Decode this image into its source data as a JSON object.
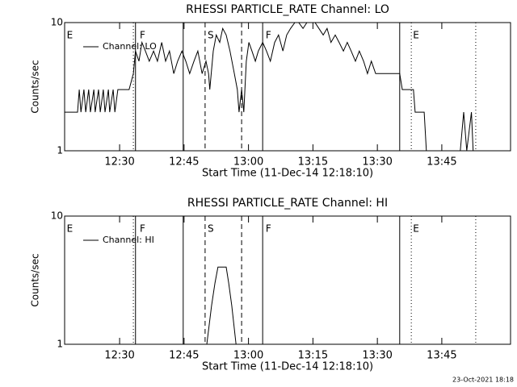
{
  "chart_data": [
    {
      "type": "line",
      "title": "RHESSI PARTICLE_RATE Channel: LO",
      "x_label": "Start Time (11-Dec-14 12:18:10)",
      "y_label": "Counts/sec",
      "log_y": true,
      "xlim": [
        737.2,
        841.0
      ],
      "ylim": [
        1,
        10
      ],
      "yticks": [
        1,
        10
      ],
      "xticks": [
        {
          "value": 750,
          "label": "12:30"
        },
        {
          "value": 765,
          "label": "12:45"
        },
        {
          "value": 780,
          "label": "13:00"
        },
        {
          "value": 795,
          "label": "13:15"
        },
        {
          "value": 810,
          "label": "13:30"
        },
        {
          "value": 825,
          "label": "13:45"
        }
      ],
      "x": [
        737.2,
        740.2,
        740.6,
        741.0,
        741.7,
        742.1,
        742.8,
        743.2,
        744.0,
        744.3,
        745.1,
        745.5,
        746.2,
        746.6,
        747.4,
        747.7,
        748.5,
        748.9,
        749.6,
        750.4,
        752.2,
        753.2,
        753.7,
        754.5,
        755.2,
        756.0,
        756.9,
        757.9,
        758.8,
        759.8,
        760.7,
        761.6,
        762.6,
        763.5,
        764.5,
        765.4,
        766.3,
        767.3,
        768.2,
        769.2,
        770.1,
        770.7,
        771.0,
        771.8,
        772.5,
        773.3,
        774.0,
        774.8,
        775.7,
        776.7,
        777.4,
        777.8,
        778.4,
        778.9,
        779.5,
        780.1,
        780.8,
        781.6,
        782.3,
        783.3,
        784.2,
        785.1,
        786.1,
        787.0,
        788.0,
        788.9,
        789.8,
        790.8,
        791.7,
        792.7,
        793.6,
        794.5,
        795.5,
        796.4,
        797.4,
        798.3,
        799.2,
        800.2,
        801.1,
        802.1,
        803.0,
        803.9,
        804.9,
        805.8,
        806.8,
        807.7,
        808.6,
        809.6,
        810.5,
        812.4,
        814.3,
        815.2,
        815.8,
        817.1,
        818.4,
        818.8,
        819.9,
        820.9,
        821.4,
        823.7,
        826.5,
        829.3,
        830.1,
        830.8,
        831.9,
        832.3
      ],
      "series": [
        {
          "name": "Channel: LO",
          "color": "#000000",
          "values": [
            2,
            2,
            3,
            2,
            3,
            2,
            3,
            2,
            3,
            2,
            3,
            2,
            3,
            2,
            3,
            2,
            3,
            2,
            3,
            3,
            3,
            4,
            6,
            5,
            7,
            6,
            5,
            6,
            5,
            7,
            5,
            6,
            4,
            5,
            6,
            5,
            4,
            5,
            6,
            4,
            5,
            4,
            3,
            6,
            8,
            7,
            9,
            8,
            6,
            4,
            3,
            2,
            3,
            2,
            5,
            7,
            6,
            5,
            6,
            7,
            6,
            5,
            7,
            8,
            6,
            8,
            9,
            10,
            10,
            9,
            10,
            10,
            10,
            9,
            8,
            9,
            7,
            8,
            7,
            6,
            7,
            6,
            5,
            6,
            5,
            4,
            5,
            4,
            4,
            4,
            4,
            4,
            3,
            3,
            3,
            2,
            2,
            2,
            1,
            1,
            1,
            1,
            2,
            1,
            2,
            1
          ]
        }
      ],
      "vlines": [
        {
          "x": 753.2,
          "style": "dotted"
        },
        {
          "x": 753.7,
          "style": "solid"
        },
        {
          "x": 764.8,
          "style": "solid"
        },
        {
          "x": 769.9,
          "style": "dashed"
        },
        {
          "x": 778.4,
          "style": "dashed"
        },
        {
          "x": 783.3,
          "style": "solid"
        },
        {
          "x": 815.2,
          "style": "solid"
        },
        {
          "x": 817.9,
          "style": "dotted"
        },
        {
          "x": 832.9,
          "style": "dotted"
        }
      ],
      "flags": [
        {
          "x": 737.5,
          "text": "E"
        },
        {
          "x": 754.5,
          "text": "F"
        },
        {
          "x": 770.3,
          "text": "S"
        },
        {
          "x": 783.8,
          "text": "F"
        },
        {
          "x": 818.1,
          "text": "E"
        }
      ]
    },
    {
      "type": "line",
      "title": "RHESSI PARTICLE_RATE Channel: HI",
      "x_label": "Start Time (11-Dec-14 12:18:10)",
      "y_label": "Counts/sec",
      "log_y": true,
      "xlim": [
        737.2,
        841.0
      ],
      "ylim": [
        1,
        10
      ],
      "yticks": [
        1,
        10
      ],
      "xticks": [
        {
          "value": 750,
          "label": "12:30"
        },
        {
          "value": 765,
          "label": "12:45"
        },
        {
          "value": 780,
          "label": "13:00"
        },
        {
          "value": 795,
          "label": "13:15"
        },
        {
          "value": 810,
          "label": "13:30"
        },
        {
          "value": 825,
          "label": "13:45"
        }
      ],
      "x": [
        737.2,
        770.3,
        771.4,
        772.2,
        772.9,
        774.8,
        775.4,
        776.1,
        777.1,
        832.3
      ],
      "series": [
        {
          "name": "Channel: HI",
          "color": "#000000",
          "values": [
            1,
            1,
            2,
            3,
            4,
            4,
            3,
            2,
            1,
            1
          ]
        }
      ],
      "vlines": [
        {
          "x": 753.2,
          "style": "dotted"
        },
        {
          "x": 753.7,
          "style": "solid"
        },
        {
          "x": 764.8,
          "style": "solid"
        },
        {
          "x": 769.9,
          "style": "dashed"
        },
        {
          "x": 778.4,
          "style": "dashed"
        },
        {
          "x": 783.3,
          "style": "solid"
        },
        {
          "x": 815.2,
          "style": "solid"
        },
        {
          "x": 817.9,
          "style": "dotted"
        },
        {
          "x": 832.9,
          "style": "dotted"
        }
      ],
      "flags": [
        {
          "x": 737.5,
          "text": "E"
        },
        {
          "x": 754.5,
          "text": "F"
        },
        {
          "x": 770.3,
          "text": "S"
        },
        {
          "x": 783.8,
          "text": "F"
        },
        {
          "x": 818.1,
          "text": "E"
        }
      ]
    }
  ],
  "footer": "23-Oct-2021 18:18"
}
